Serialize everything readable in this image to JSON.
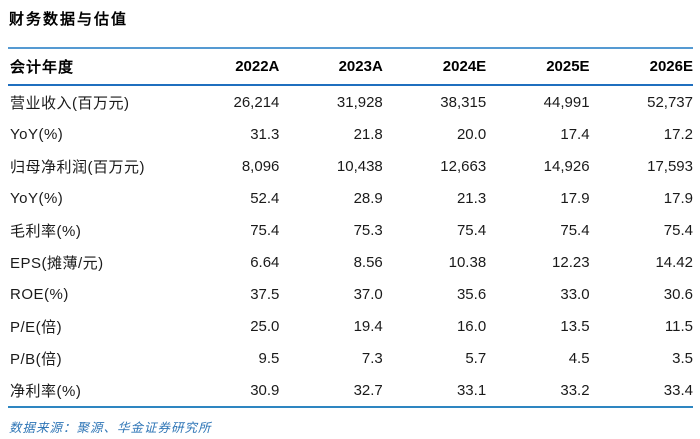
{
  "title": "财务数据与估值",
  "table": {
    "header": {
      "label": "会计年度",
      "years": [
        "2022A",
        "2023A",
        "2024E",
        "2025E",
        "2026E"
      ]
    },
    "rows": [
      {
        "label": "营业收入(百万元)",
        "values": [
          "26,214",
          "31,928",
          "38,315",
          "44,991",
          "52,737"
        ]
      },
      {
        "label": "YoY(%)",
        "values": [
          "31.3",
          "21.8",
          "20.0",
          "17.4",
          "17.2"
        ]
      },
      {
        "label": "归母净利润(百万元)",
        "values": [
          "8,096",
          "10,438",
          "12,663",
          "14,926",
          "17,593"
        ]
      },
      {
        "label": "YoY(%)",
        "values": [
          "52.4",
          "28.9",
          "21.3",
          "17.9",
          "17.9"
        ]
      },
      {
        "label": "毛利率(%)",
        "values": [
          "75.4",
          "75.3",
          "75.4",
          "75.4",
          "75.4"
        ]
      },
      {
        "label": "EPS(摊薄/元)",
        "values": [
          "6.64",
          "8.56",
          "10.38",
          "12.23",
          "14.42"
        ]
      },
      {
        "label": "ROE(%)",
        "values": [
          "37.5",
          "37.0",
          "35.6",
          "33.0",
          "30.6"
        ]
      },
      {
        "label": "P/E(倍)",
        "values": [
          "25.0",
          "19.4",
          "16.0",
          "13.5",
          "11.5"
        ]
      },
      {
        "label": "P/B(倍)",
        "values": [
          "9.5",
          "7.3",
          "5.7",
          "4.5",
          "3.5"
        ]
      },
      {
        "label": "净利率(%)",
        "values": [
          "30.9",
          "32.7",
          "33.1",
          "33.2",
          "33.4"
        ]
      }
    ]
  },
  "footer": {
    "source_label": "数据来源：聚源、华金证券研究所"
  },
  "colors": {
    "rule_top": "#559ad2",
    "rule_header_bottom": "#1f6fbf",
    "rule_table_bottom": "#2e86c1",
    "source_text": "#2e75b6",
    "body_text": "#1a1a1a"
  }
}
